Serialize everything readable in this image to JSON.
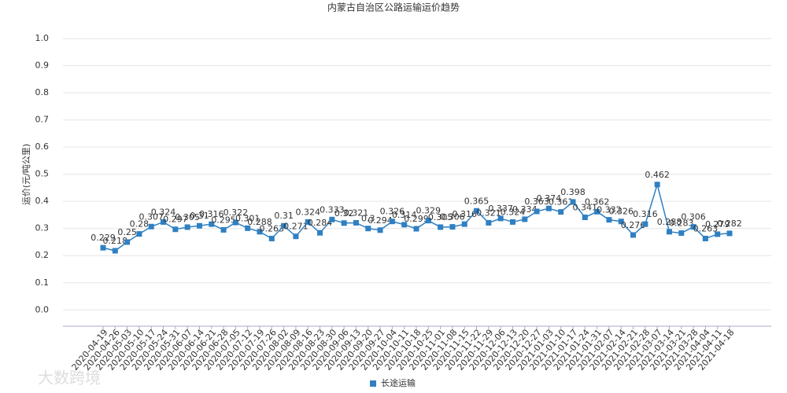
{
  "chart_data": {
    "type": "line",
    "title": "内蒙古自治区公路运输运价趋势",
    "y_label": "运价(元/吨公里)",
    "watermark": "大数跨境",
    "categories": [
      "2020-04-19",
      "2020-04-26",
      "2020-05-03",
      "2020-05-10",
      "2020-05-17",
      "2020-05-24",
      "2020-05-31",
      "2020-06-07",
      "2020-06-14",
      "2020-06-21",
      "2020-06-28",
      "2020-07-05",
      "2020-07-12",
      "2020-07-19",
      "2020-07-26",
      "2020-08-02",
      "2020-08-09",
      "2020-08-16",
      "2020-08-23",
      "2020-08-30",
      "2020-09-06",
      "2020-09-13",
      "2020-09-20",
      "2020-09-27",
      "2020-10-04",
      "2020-10-11",
      "2020-10-18",
      "2020-10-25",
      "2020-11-01",
      "2020-11-08",
      "2020-11-15",
      "2020-11-22",
      "2020-11-29",
      "2020-12-06",
      "2020-12-13",
      "2020-12-20",
      "2020-12-27",
      "2021-01-03",
      "2021-01-10",
      "2021-01-17",
      "2021-01-24",
      "2021-01-31",
      "2021-02-07",
      "2021-02-14",
      "2021-02-21",
      "2021-02-28",
      "2021-03-07",
      "2021-03-14",
      "2021-03-21",
      "2021-03-28",
      "2021-04-04",
      "2021-04-11",
      "2021-04-18"
    ],
    "series": [
      {
        "name": "长途运输",
        "color": "#2f80c2",
        "values": [
          0.229,
          0.218,
          0.25,
          0.28,
          0.307,
          0.324,
          0.297,
          0.305,
          0.31,
          0.316,
          0.295,
          0.322,
          0.301,
          0.288,
          0.263,
          0.31,
          0.271,
          0.324,
          0.284,
          0.333,
          0.32,
          0.321,
          0.3,
          0.294,
          0.326,
          0.314,
          0.299,
          0.329,
          0.305,
          0.306,
          0.316,
          0.365,
          0.321,
          0.337,
          0.324,
          0.334,
          0.363,
          0.374,
          0.361,
          0.398,
          0.341,
          0.362,
          0.332,
          0.326,
          0.276,
          0.316,
          0.462,
          0.288,
          0.283,
          0.306,
          0.263,
          0.279,
          0.282
        ]
      }
    ],
    "ylim": [
      -0.06,
      1.0
    ],
    "yticks": [
      {
        "value": 0,
        "label": "0.0"
      },
      {
        "value": 0.1,
        "label": "0.1"
      },
      {
        "value": 0.2,
        "label": "0.2"
      },
      {
        "value": 0.3,
        "label": "0.3"
      },
      {
        "value": 0.4,
        "label": "0.4"
      },
      {
        "value": 0.5,
        "label": "0.5"
      },
      {
        "value": 0.6,
        "label": "0.6"
      },
      {
        "value": 0.7,
        "label": "0.7"
      },
      {
        "value": 0.8,
        "label": "0.8"
      },
      {
        "value": 0.9,
        "label": "0.9"
      },
      {
        "value": 1.0,
        "label": "1.0"
      }
    ],
    "grid": true,
    "legend": "bottom"
  }
}
